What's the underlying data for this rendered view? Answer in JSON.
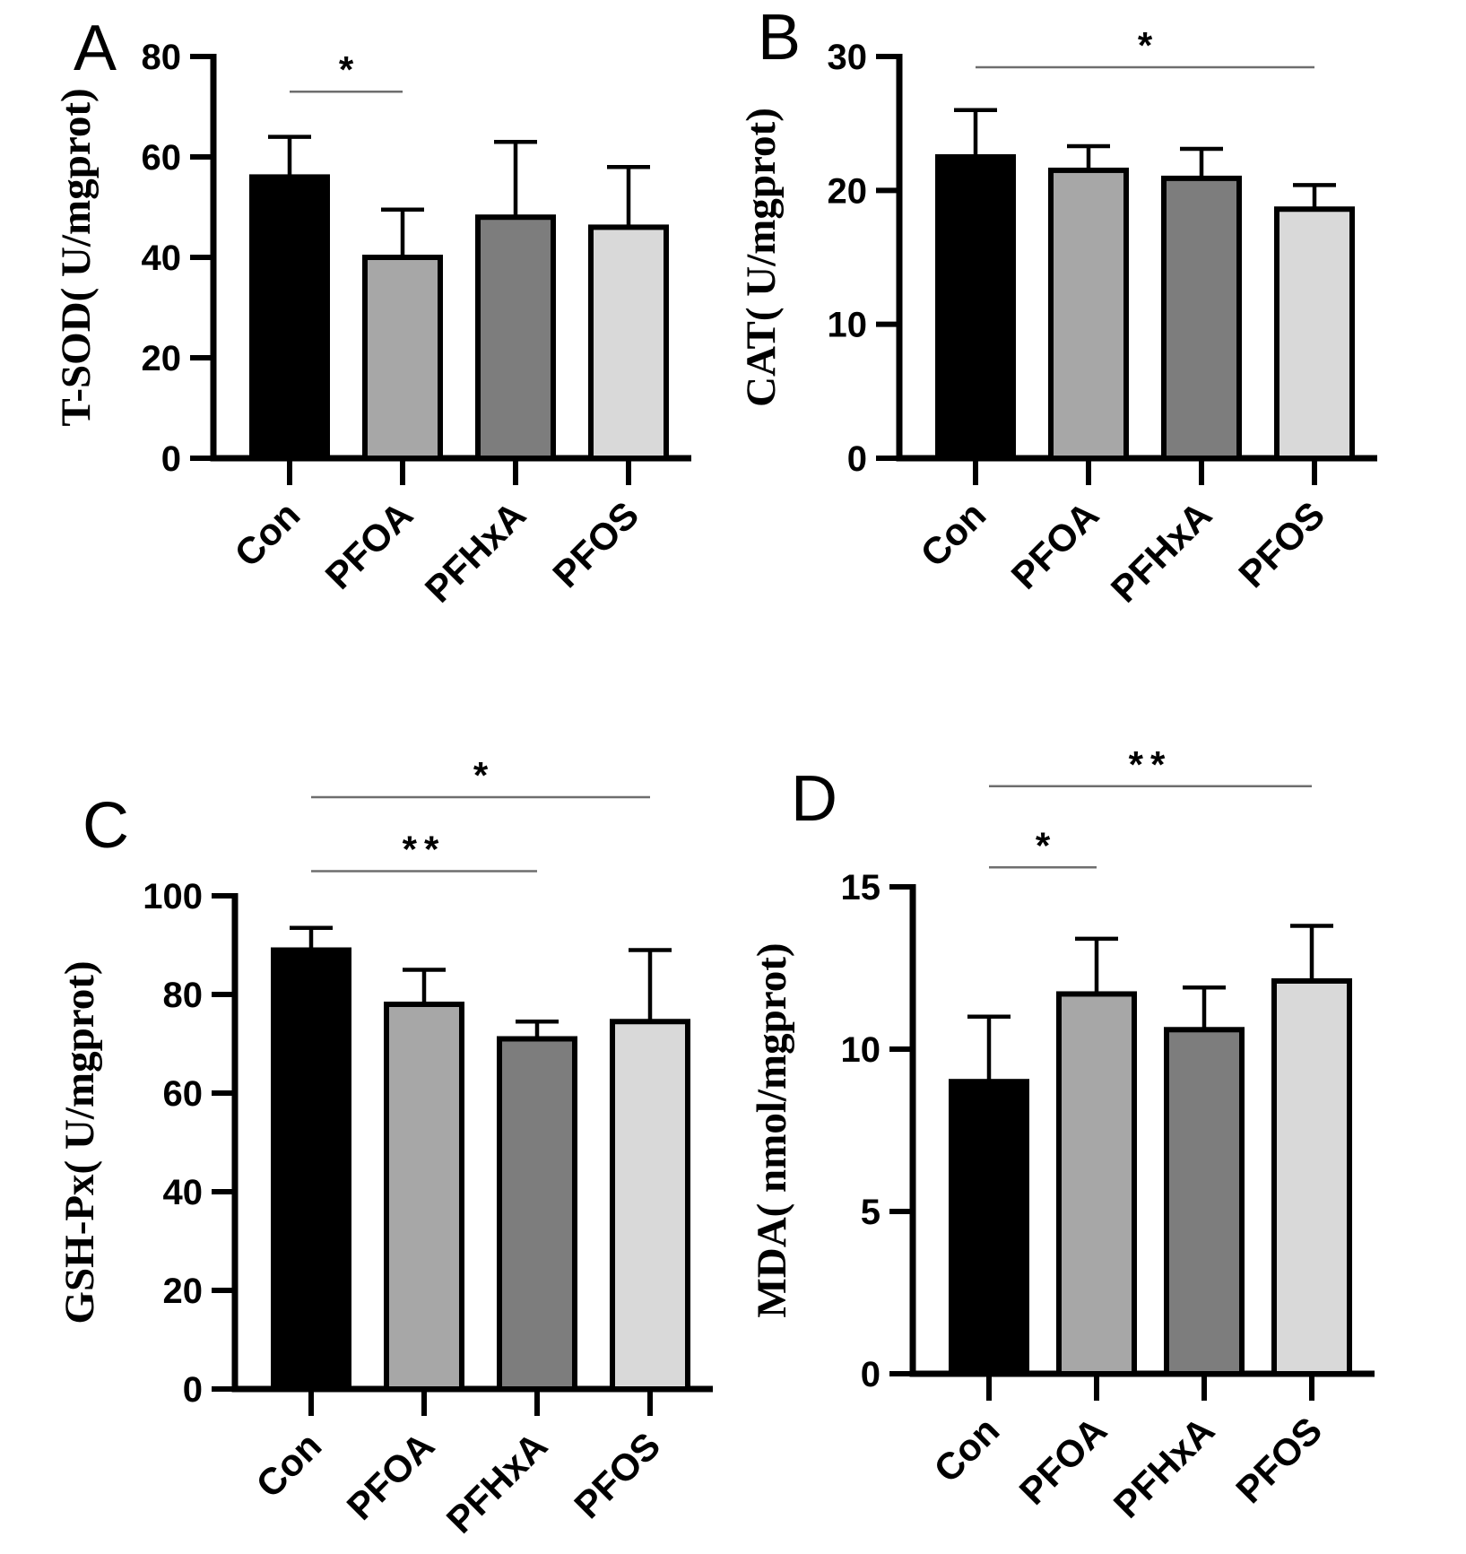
{
  "figure": {
    "background": "#ffffff",
    "bar_fill_colors": [
      "#000000",
      "#a7a7a7",
      "#7d7d7d",
      "#d9d9d9"
    ],
    "bar_border_color": "#000000",
    "axis_color": "#000000",
    "sig_line_color": "#6e6e6e",
    "text_color": "#000000"
  },
  "chart_data": [
    {
      "panel_letter": "A",
      "type": "bar",
      "ylabel": "T-SOD（ U/mgprot）",
      "xlabel": "",
      "categories": [
        "Con",
        "PFOA",
        "PFHxA",
        "PFOS"
      ],
      "values": [
        56,
        40,
        48,
        46
      ],
      "errors_up": [
        8,
        9.5,
        15,
        12
      ],
      "ylim": [
        0,
        80
      ],
      "yticks": [
        0,
        20,
        40,
        60,
        80
      ],
      "grid": "off",
      "legend": "none",
      "significance": [
        {
          "from": "Con",
          "to": "PFOA",
          "label": "*",
          "y": 73
        }
      ]
    },
    {
      "panel_letter": "B",
      "type": "bar",
      "ylabel": "CAT（ U/mgprot）",
      "xlabel": "",
      "categories": [
        "Con",
        "PFOA",
        "PFHxA",
        "PFOS"
      ],
      "values": [
        22.5,
        21.5,
        20.9,
        18.6
      ],
      "errors_up": [
        3.5,
        1.8,
        2.2,
        1.8
      ],
      "ylim": [
        0,
        30
      ],
      "yticks": [
        0,
        10,
        20,
        30
      ],
      "grid": "off",
      "legend": "none",
      "significance": [
        {
          "from": "Con",
          "to": "PFOS",
          "label": "*",
          "y": 29.2
        }
      ]
    },
    {
      "panel_letter": "C",
      "type": "bar",
      "ylabel": "GSH-Px（ U/mgprot）",
      "xlabel": "",
      "categories": [
        "Con",
        "PFOA",
        "PFHxA",
        "PFOS"
      ],
      "values": [
        89,
        78,
        71,
        74.5
      ],
      "errors_up": [
        4.5,
        7,
        3.5,
        14.5
      ],
      "ylim": [
        0,
        100
      ],
      "yticks": [
        0,
        20,
        40,
        60,
        80,
        100
      ],
      "grid": "off",
      "legend": "none",
      "significance": [
        {
          "from": "Con",
          "to": "PFOS",
          "label": "*",
          "y": 120
        },
        {
          "from": "Con",
          "to": "PFHxA",
          "label": "**",
          "y": 105
        }
      ]
    },
    {
      "panel_letter": "D",
      "type": "bar",
      "ylabel": "MDA（ nmol/mgprot）",
      "xlabel": "",
      "categories": [
        "Con",
        "PFOA",
        "PFHxA",
        "PFOS"
      ],
      "values": [
        9,
        11.7,
        10.6,
        12.1
      ],
      "errors_up": [
        2,
        1.7,
        1.3,
        1.7
      ],
      "ylim": [
        0,
        15
      ],
      "yticks": [
        0,
        5,
        10,
        15
      ],
      "grid": "off",
      "legend": "none",
      "significance": [
        {
          "from": "Con",
          "to": "PFOS",
          "label": "**",
          "y": 18.1
        },
        {
          "from": "Con",
          "to": "PFOA",
          "label": "*",
          "y": 15.6
        }
      ]
    }
  ]
}
